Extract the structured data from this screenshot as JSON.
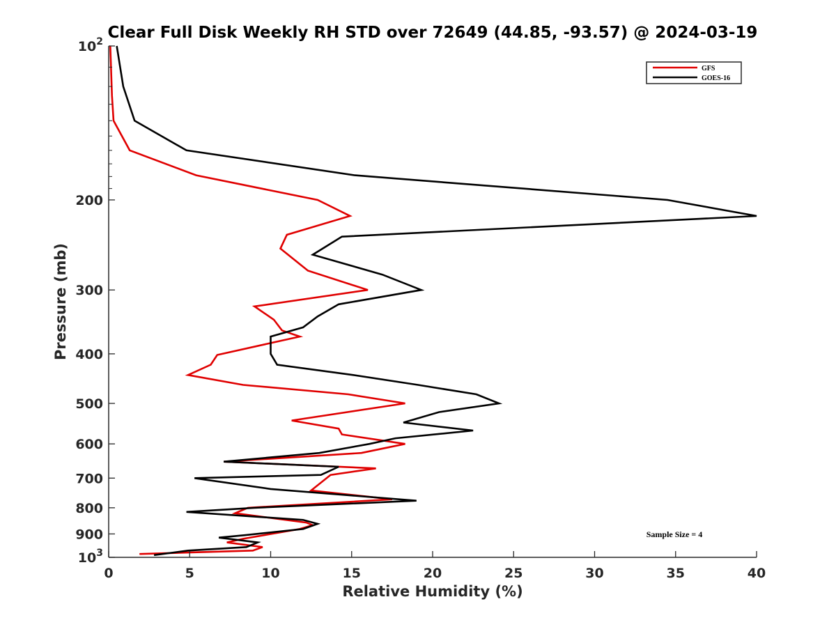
{
  "chart_data": {
    "type": "line",
    "title": "Clear Full Disk Weekly RH STD over 72649 (44.85, -93.57) @ 2024-03-19",
    "xlabel": "Relative Humidity (%)",
    "ylabel": "Pressure (mb)",
    "xlim": [
      0,
      40
    ],
    "ylim": [
      100,
      1000
    ],
    "yscale": "log",
    "y_reversed": true,
    "grid": false,
    "x_ticks": [
      0,
      5,
      10,
      15,
      20,
      25,
      30,
      35,
      40
    ],
    "x_tick_labels": [
      "0",
      "5",
      "10",
      "15",
      "20",
      "25",
      "30",
      "35",
      "40"
    ],
    "y_ticks": [
      100,
      200,
      300,
      400,
      500,
      600,
      700,
      800,
      900,
      1000
    ],
    "y_tick_labels": [
      {
        "base": "10",
        "exp": "2"
      },
      {
        "base": "200",
        "exp": ""
      },
      {
        "base": "300",
        "exp": ""
      },
      {
        "base": "400",
        "exp": ""
      },
      {
        "base": "500",
        "exp": ""
      },
      {
        "base": "600",
        "exp": ""
      },
      {
        "base": "700",
        "exp": ""
      },
      {
        "base": "800",
        "exp": ""
      },
      {
        "base": "900",
        "exp": ""
      },
      {
        "base": "10",
        "exp": "3"
      }
    ],
    "legend": {
      "position": "top-right",
      "entries": [
        "GFS",
        "GOES-16"
      ]
    },
    "annotation": "Sample Size = 4",
    "series": [
      {
        "name": "GFS",
        "color": "#e00000",
        "points": [
          [
            0.1,
            100
          ],
          [
            0.2,
            125
          ],
          [
            0.3,
            140
          ],
          [
            1.3,
            160
          ],
          [
            5.4,
            179
          ],
          [
            12.9,
            200
          ],
          [
            14.9,
            215
          ],
          [
            11.0,
            234
          ],
          [
            10.6,
            249
          ],
          [
            12.3,
            275
          ],
          [
            16.0,
            300
          ],
          [
            9.0,
            323
          ],
          [
            10.2,
            343
          ],
          [
            10.7,
            360
          ],
          [
            11.8,
            370
          ],
          [
            6.7,
            402
          ],
          [
            6.3,
            420
          ],
          [
            4.9,
            440
          ],
          [
            8.3,
            460
          ],
          [
            14.8,
            480
          ],
          [
            18.3,
            500
          ],
          [
            11.3,
            540
          ],
          [
            14.2,
            560
          ],
          [
            14.4,
            575
          ],
          [
            18.3,
            600
          ],
          [
            15.6,
            625
          ],
          [
            7.1,
            650
          ],
          [
            16.5,
            670
          ],
          [
            13.7,
            690
          ],
          [
            12.5,
            740
          ],
          [
            17.5,
            770
          ],
          [
            8.6,
            800
          ],
          [
            7.8,
            820
          ],
          [
            12.2,
            855
          ],
          [
            12.6,
            865
          ],
          [
            11.8,
            880
          ],
          [
            8.3,
            920
          ],
          [
            7.3,
            935
          ],
          [
            9.5,
            955
          ],
          [
            8.9,
            970
          ],
          [
            1.9,
            985
          ]
        ]
      },
      {
        "name": "GOES-16",
        "color": "#000000",
        "points": [
          [
            0.5,
            100
          ],
          [
            0.9,
            120
          ],
          [
            1.6,
            140
          ],
          [
            4.8,
            160
          ],
          [
            15.2,
            179
          ],
          [
            34.5,
            200
          ],
          [
            40.0,
            215
          ],
          [
            14.4,
            236
          ],
          [
            12.6,
            256
          ],
          [
            16.9,
            280
          ],
          [
            19.3,
            300
          ],
          [
            14.2,
            320
          ],
          [
            12.9,
            338
          ],
          [
            12.0,
            355
          ],
          [
            10.0,
            370
          ],
          [
            10.0,
            400
          ],
          [
            10.4,
            420
          ],
          [
            15.1,
            440
          ],
          [
            19.1,
            460
          ],
          [
            22.7,
            480
          ],
          [
            24.1,
            500
          ],
          [
            20.4,
            520
          ],
          [
            18.2,
            545
          ],
          [
            22.5,
            565
          ],
          [
            17.7,
            585
          ],
          [
            16.1,
            600
          ],
          [
            13.0,
            625
          ],
          [
            7.1,
            650
          ],
          [
            14.2,
            665
          ],
          [
            13.1,
            690
          ],
          [
            5.3,
            700
          ],
          [
            10.0,
            735
          ],
          [
            19.0,
            775
          ],
          [
            9.0,
            800
          ],
          [
            4.8,
            815
          ],
          [
            12.0,
            845
          ],
          [
            12.9,
            860
          ],
          [
            12.0,
            880
          ],
          [
            8.4,
            905
          ],
          [
            6.8,
            915
          ],
          [
            9.2,
            935
          ],
          [
            8.5,
            955
          ],
          [
            4.9,
            970
          ],
          [
            2.8,
            990
          ]
        ]
      }
    ]
  }
}
